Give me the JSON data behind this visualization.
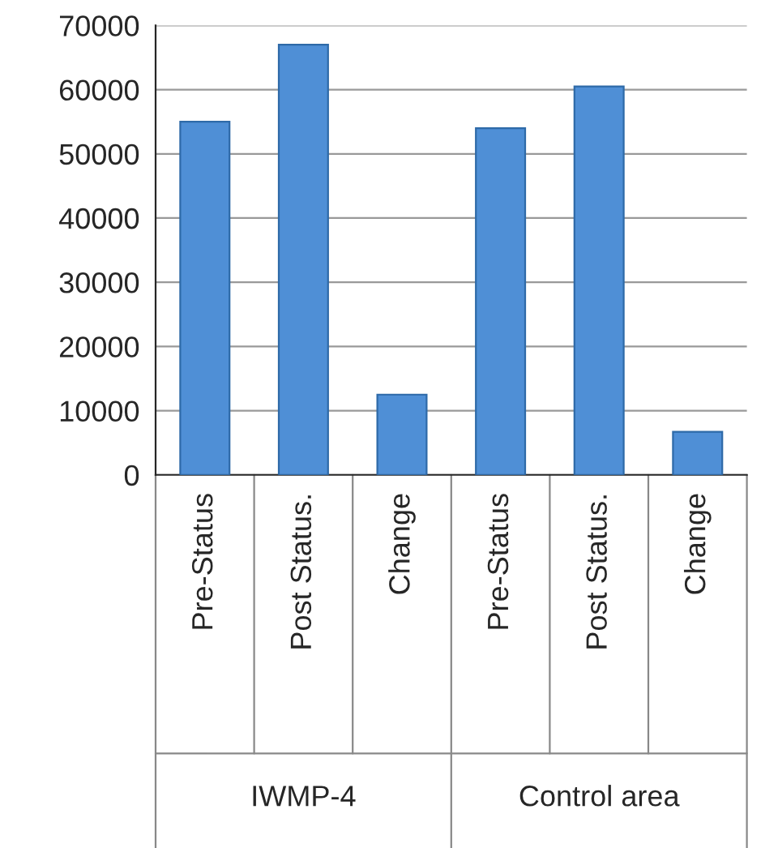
{
  "chart_data": {
    "type": "bar",
    "categories": [
      "Pre-Status",
      "Post Status.",
      "Change",
      "Pre-Status",
      "Post Status.",
      "Change"
    ],
    "values": [
      55000,
      67000,
      12500,
      54000,
      60500,
      6700
    ],
    "color": "#4f8fd6",
    "ylim": [
      0,
      70000
    ],
    "yticks": [
      0,
      10000,
      20000,
      30000,
      40000,
      50000,
      60000,
      70000
    ],
    "grid": "y",
    "annotations": [
      "IWMP-4",
      "Control area"
    ]
  }
}
